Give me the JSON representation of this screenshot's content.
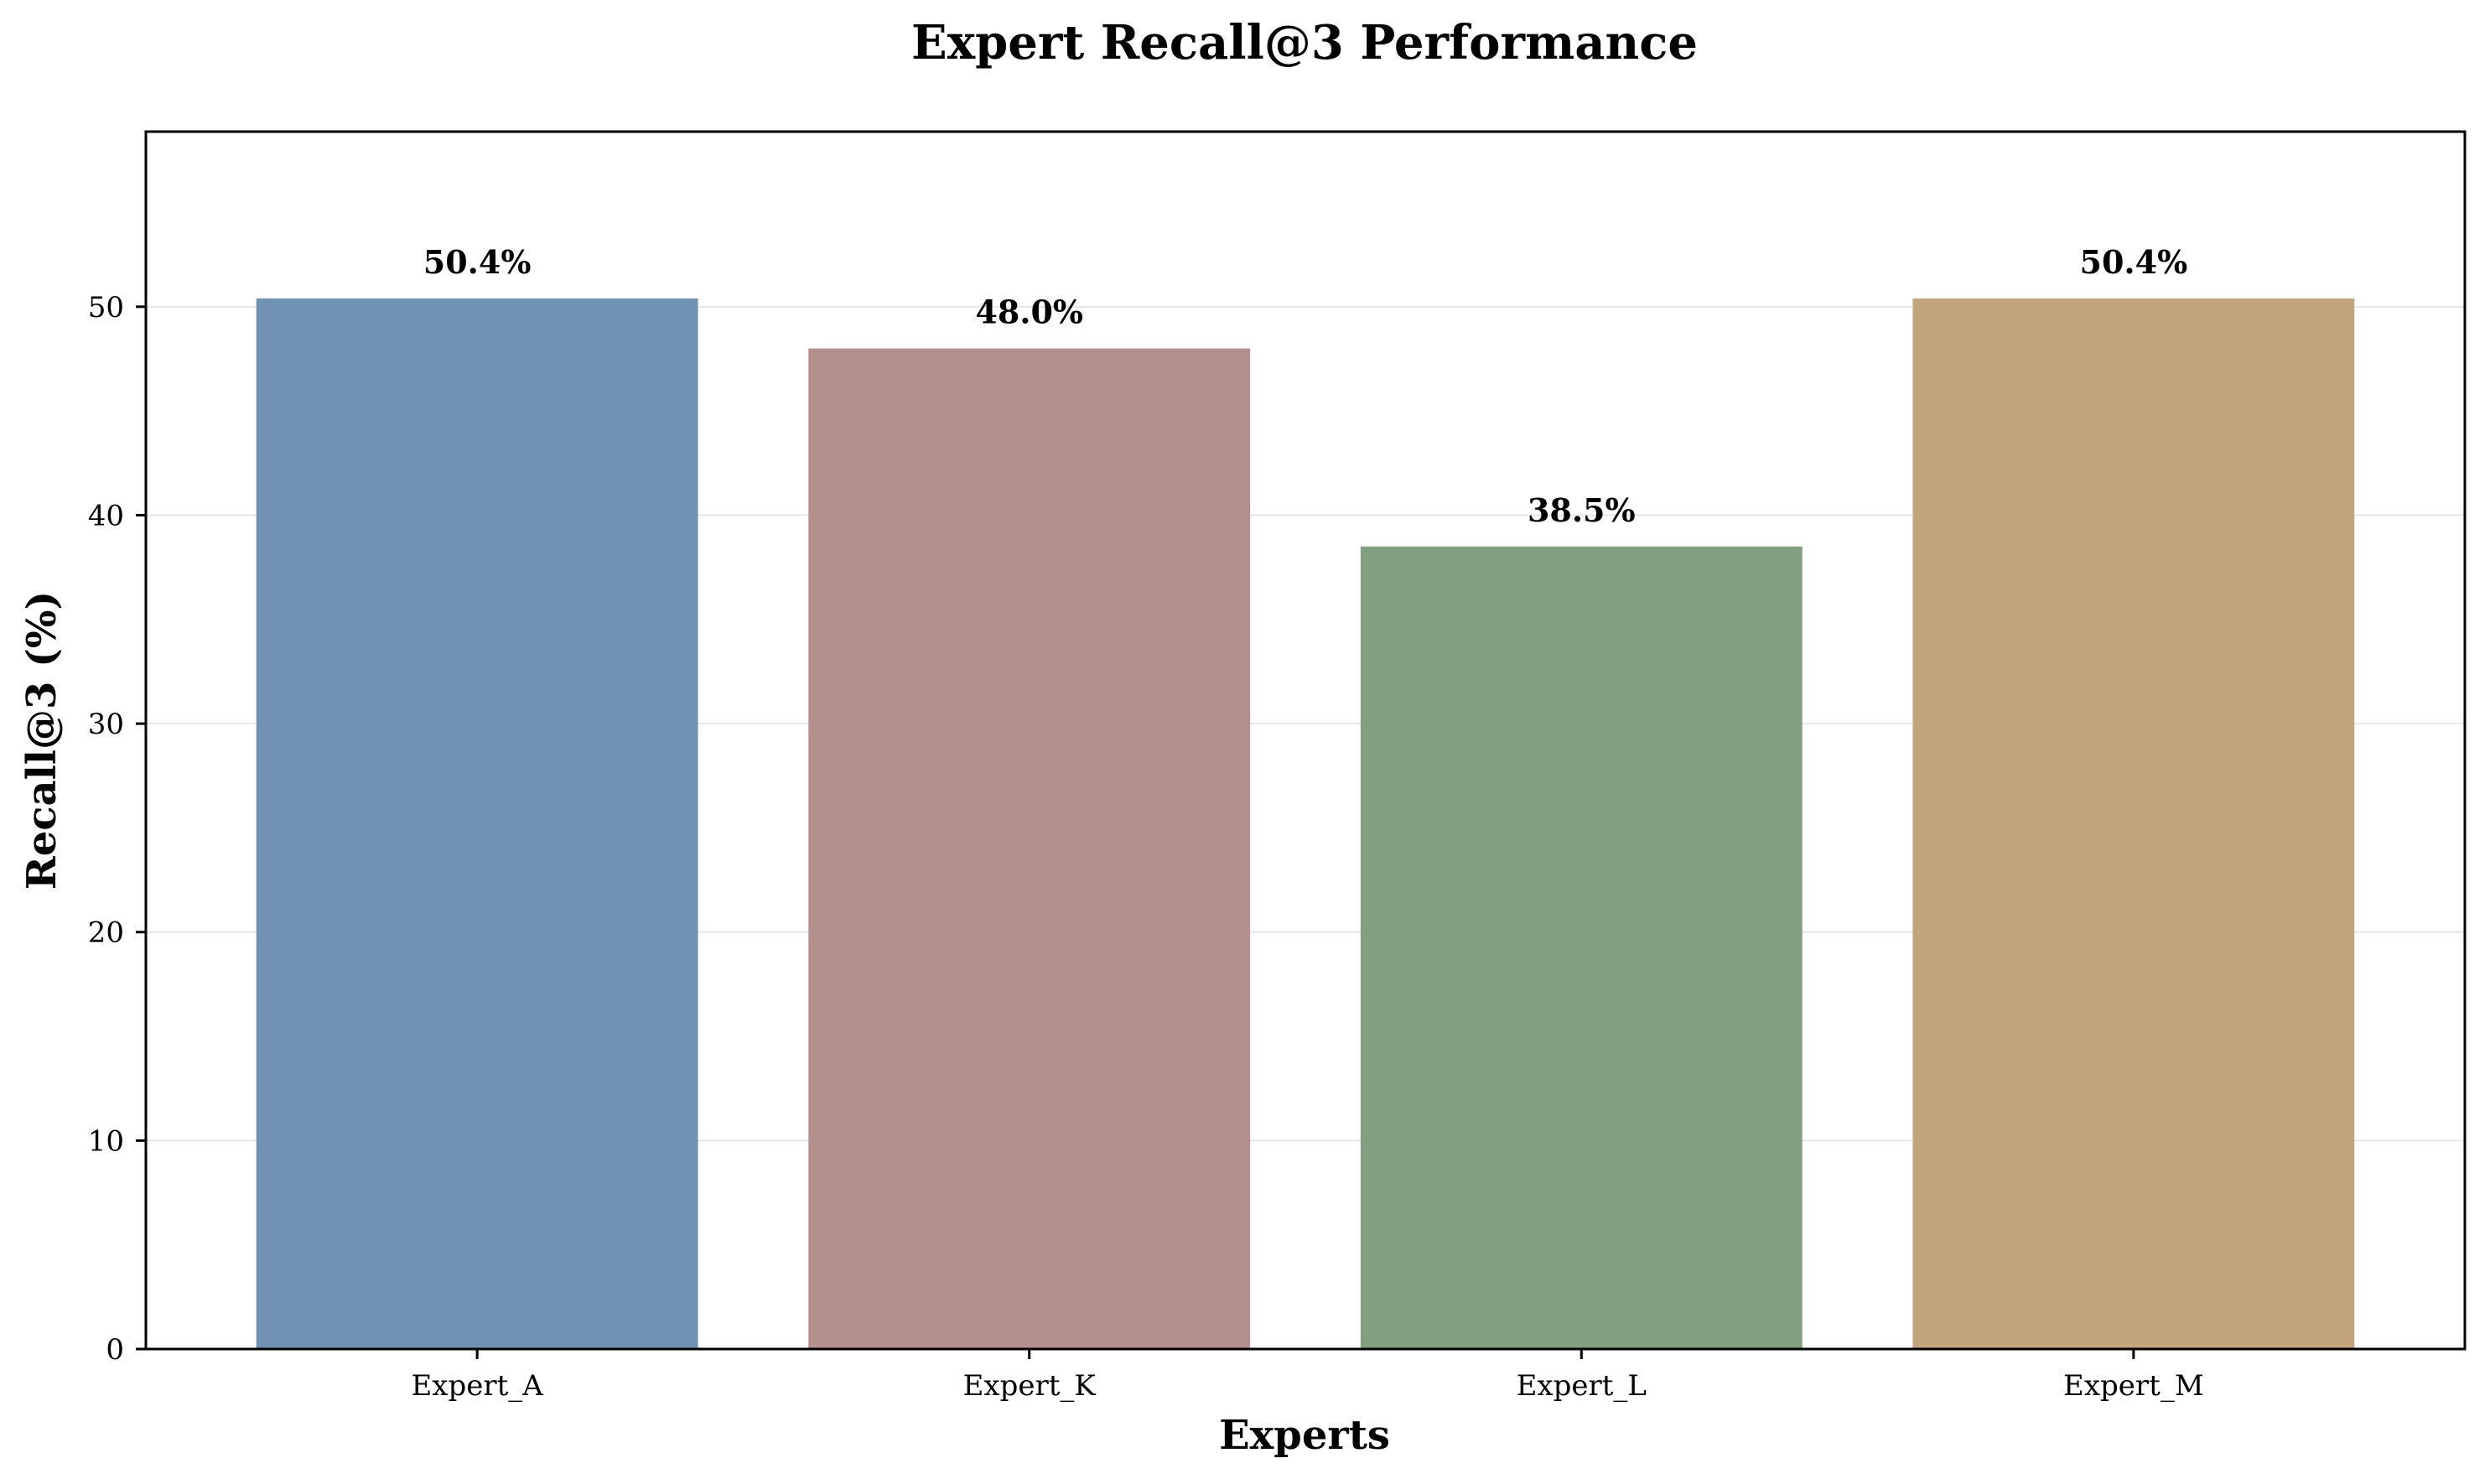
{
  "chart_data": {
    "type": "bar",
    "title": "Expert Recall@3 Performance",
    "xlabel": "Experts",
    "ylabel": "Recall@3 (%)",
    "categories": [
      "Expert_A",
      "Expert_K",
      "Expert_L",
      "Expert_M"
    ],
    "values": [
      50.4,
      48.0,
      38.5,
      50.4
    ],
    "data_labels": [
      "50.4%",
      "48.0%",
      "38.5%",
      "50.4%"
    ],
    "colors": [
      "#7292b4",
      "#b38f8e",
      "#82a081",
      "#c2a47f"
    ],
    "ylim": [
      0,
      58.4
    ],
    "yticks": [
      0,
      10,
      20,
      30,
      40,
      50
    ],
    "grid": true,
    "legend": "none"
  }
}
